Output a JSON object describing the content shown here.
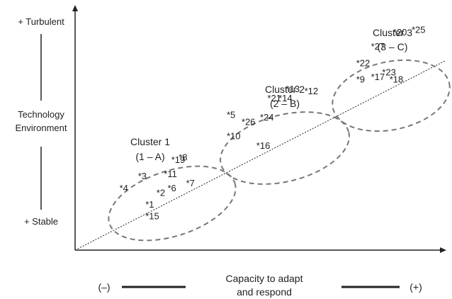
{
  "chart_data": {
    "type": "scatter",
    "title": "",
    "y_axis": {
      "top_label": "+ Turbulent",
      "middle_label_lines": [
        "Technology",
        "Environment"
      ],
      "bottom_label": "+ Stable"
    },
    "x_axis": {
      "left_label": "(–)",
      "middle_label_lines": [
        "Capacity to adapt",
        "and respond"
      ],
      "right_label": "(+)"
    },
    "clusters": [
      {
        "name": "Cluster 1",
        "code": "(1 – A)",
        "members": [
          "1",
          "2",
          "3",
          "4",
          "6",
          "7",
          "8",
          "11",
          "15",
          "19"
        ]
      },
      {
        "name": "Cluster 2",
        "code": "(2 – B)",
        "members": [
          "5",
          "10",
          "12",
          "13",
          "14",
          "16",
          "21",
          "24",
          "26"
        ]
      },
      {
        "name": "Cluster 3",
        "code": "(3 – C)",
        "members": [
          "9",
          "17",
          "18",
          "20",
          "22",
          "23",
          "25",
          "27"
        ]
      }
    ],
    "points": [
      {
        "label": "*1",
        "x": 0.19,
        "y": 0.18
      },
      {
        "label": "*2",
        "x": 0.22,
        "y": 0.23
      },
      {
        "label": "*3",
        "x": 0.17,
        "y": 0.3
      },
      {
        "label": "*4",
        "x": 0.12,
        "y": 0.25
      },
      {
        "label": "*5",
        "x": 0.41,
        "y": 0.56
      },
      {
        "label": "*6",
        "x": 0.25,
        "y": 0.25
      },
      {
        "label": "*7",
        "x": 0.3,
        "y": 0.27
      },
      {
        "label": "*8",
        "x": 0.28,
        "y": 0.38
      },
      {
        "label": "*9",
        "x": 0.76,
        "y": 0.71
      },
      {
        "label": "*10",
        "x": 0.41,
        "y": 0.47
      },
      {
        "label": "*11",
        "x": 0.24,
        "y": 0.31
      },
      {
        "label": "*12",
        "x": 0.62,
        "y": 0.66
      },
      {
        "label": "*13",
        "x": 0.57,
        "y": 0.67
      },
      {
        "label": "*14",
        "x": 0.55,
        "y": 0.63
      },
      {
        "label": "*15",
        "x": 0.19,
        "y": 0.13
      },
      {
        "label": "*16",
        "x": 0.49,
        "y": 0.43
      },
      {
        "label": "*17",
        "x": 0.8,
        "y": 0.72
      },
      {
        "label": "*18",
        "x": 0.85,
        "y": 0.71
      },
      {
        "label": "*19",
        "x": 0.26,
        "y": 0.37
      },
      {
        "label": "*20",
        "x": 0.86,
        "y": 0.91
      },
      {
        "label": "*21",
        "x": 0.52,
        "y": 0.63
      },
      {
        "label": "*22",
        "x": 0.76,
        "y": 0.78
      },
      {
        "label": "*23",
        "x": 0.83,
        "y": 0.74
      },
      {
        "label": "*24",
        "x": 0.5,
        "y": 0.55
      },
      {
        "label": "*25",
        "x": 0.91,
        "y": 0.92
      },
      {
        "label": "*26",
        "x": 0.45,
        "y": 0.53
      },
      {
        "label": "*27",
        "x": 0.8,
        "y": 0.85
      }
    ],
    "trend_line": "dotted",
    "xlim": [
      0,
      1
    ],
    "ylim": [
      0,
      1
    ],
    "grid": false,
    "legend": "none"
  }
}
